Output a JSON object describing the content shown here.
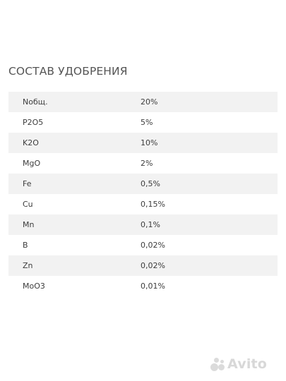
{
  "section": {
    "title": "СОСТАВ УДОБРЕНИЯ"
  },
  "composition": {
    "rows": [
      {
        "name": "Nобщ.",
        "value": "20%"
      },
      {
        "name": "P2O5",
        "value": "5%"
      },
      {
        "name": "K2O",
        "value": "10%"
      },
      {
        "name": "MgO",
        "value": "2%"
      },
      {
        "name": "Fe",
        "value": "0,5%"
      },
      {
        "name": "Cu",
        "value": "0,15%"
      },
      {
        "name": "Mn",
        "value": "0,1%"
      },
      {
        "name": "B",
        "value": "0,02%"
      },
      {
        "name": "Zn",
        "value": "0,02%"
      },
      {
        "name": "MoO3",
        "value": "0,01%"
      }
    ]
  },
  "watermark": {
    "text": "Avito",
    "icon": "avito-logo-icon"
  }
}
